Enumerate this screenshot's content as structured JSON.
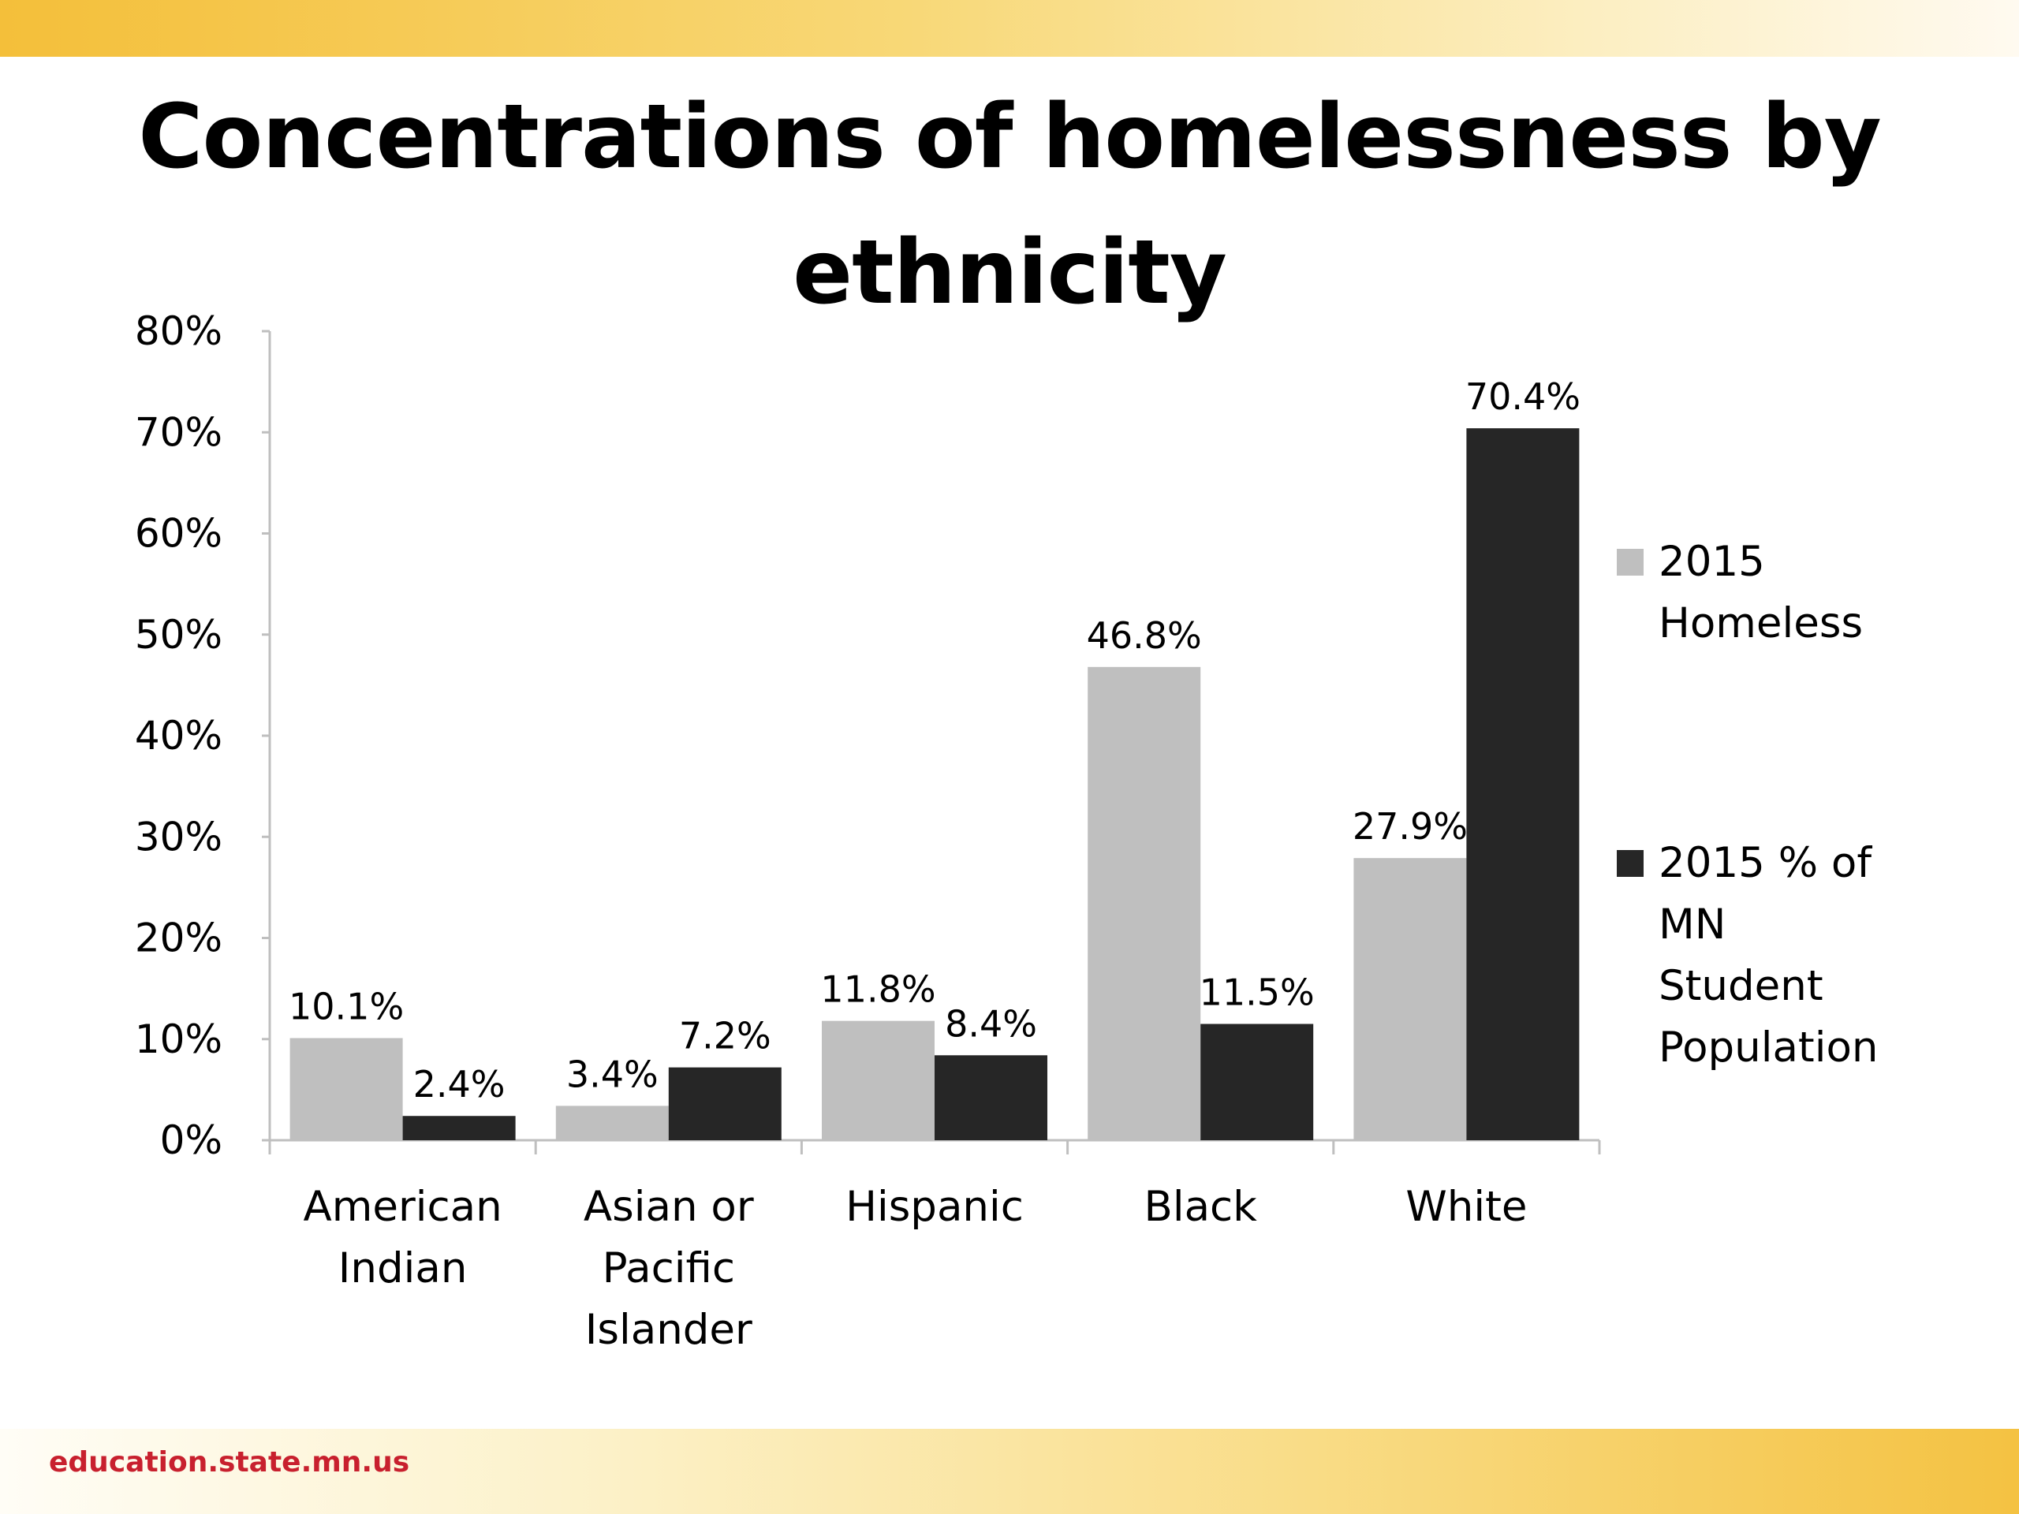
{
  "title_lines": [
    "Concentrations of homelessness by",
    "ethnicity"
  ],
  "footer": "education.state.mn.us",
  "colors": {
    "homeless": "#bfbfbf",
    "population": "#262626",
    "axis": "#bfbfbf",
    "footer": "#c8202e"
  },
  "chart_data": {
    "type": "bar",
    "title": "Concentrations of homelessness by ethnicity",
    "xlabel": "",
    "ylabel": "",
    "ylim": [
      0,
      80
    ],
    "yticks": [
      "0%",
      "10%",
      "20%",
      "30%",
      "40%",
      "50%",
      "60%",
      "70%",
      "80%"
    ],
    "categories": [
      [
        "American",
        "Indian"
      ],
      [
        "Asian or",
        "Pacific",
        "Islander"
      ],
      [
        "Hispanic"
      ],
      [
        "Black"
      ],
      [
        "White"
      ]
    ],
    "series": [
      {
        "name": "2015 Homeless",
        "legend_lines": [
          "2015",
          "Homeless"
        ],
        "values": [
          10.1,
          3.4,
          11.8,
          46.8,
          27.9
        ],
        "labels": [
          "10.1%",
          "3.4%",
          "11.8%",
          "46.8%",
          "27.9%"
        ]
      },
      {
        "name": "2015 % of MN Student Population",
        "legend_lines": [
          "2015 % of",
          "MN",
          "Student",
          "Population"
        ],
        "values": [
          2.4,
          7.2,
          8.4,
          11.5,
          70.4
        ],
        "labels": [
          "2.4%",
          "7.2%",
          "8.4%",
          "11.5%",
          "70.4%"
        ]
      }
    ],
    "legend": "right",
    "grid": false
  }
}
